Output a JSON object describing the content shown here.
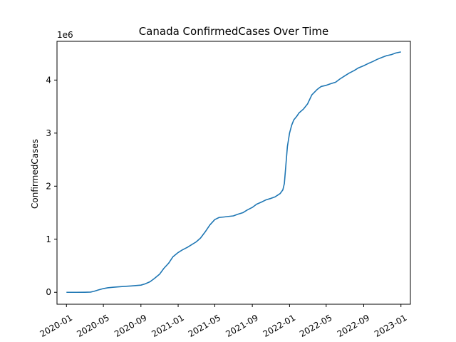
{
  "chart_data": {
    "type": "line",
    "title": "Canada  ConfirmedCases Over Time",
    "xlabel": "",
    "ylabel": "ConfirmedCases",
    "y_offset_label": "1e6",
    "y_multiplier": 1000000,
    "grid": false,
    "line_color": "#1f77b4",
    "x_ticks": [
      "2020-01",
      "2020-05",
      "2020-09",
      "2021-01",
      "2021-05",
      "2021-09",
      "2022-01",
      "2022-05",
      "2022-09",
      "2023-01"
    ],
    "y_ticks": [
      0,
      1,
      2,
      3,
      4
    ],
    "ylim": [
      -0.225,
      4.73
    ],
    "xlim": [
      "2019-12-01",
      "2023-02-01"
    ],
    "series": [
      {
        "name": "",
        "x": [
          "2020-01-01",
          "2020-02-01",
          "2020-03-01",
          "2020-03-20",
          "2020-04-01",
          "2020-04-15",
          "2020-05-01",
          "2020-05-15",
          "2020-06-01",
          "2020-07-01",
          "2020-08-01",
          "2020-09-01",
          "2020-09-15",
          "2020-10-01",
          "2020-10-15",
          "2020-11-01",
          "2020-11-15",
          "2020-12-01",
          "2020-12-15",
          "2021-01-01",
          "2021-01-15",
          "2021-02-01",
          "2021-02-15",
          "2021-03-01",
          "2021-03-15",
          "2021-04-01",
          "2021-04-15",
          "2021-05-01",
          "2021-05-15",
          "2021-06-01",
          "2021-06-15",
          "2021-07-01",
          "2021-07-15",
          "2021-08-01",
          "2021-08-15",
          "2021-09-01",
          "2021-09-15",
          "2021-10-01",
          "2021-10-15",
          "2021-11-01",
          "2021-11-15",
          "2021-12-01",
          "2021-12-10",
          "2021-12-15",
          "2021-12-20",
          "2021-12-25",
          "2022-01-01",
          "2022-01-08",
          "2022-01-15",
          "2022-01-25",
          "2022-02-01",
          "2022-02-15",
          "2022-03-01",
          "2022-03-15",
          "2022-04-01",
          "2022-04-10",
          "2022-04-15",
          "2022-05-01",
          "2022-05-15",
          "2022-06-01",
          "2022-06-15",
          "2022-07-01",
          "2022-07-15",
          "2022-08-01",
          "2022-08-15",
          "2022-09-01",
          "2022-09-15",
          "2022-10-01",
          "2022-10-15",
          "2022-11-01",
          "2022-11-15",
          "2022-12-01",
          "2022-12-15",
          "2023-01-01"
        ],
        "values": [
          0,
          0,
          0.001,
          0.004,
          0.02,
          0.045,
          0.07,
          0.085,
          0.095,
          0.108,
          0.12,
          0.135,
          0.16,
          0.2,
          0.26,
          0.34,
          0.45,
          0.55,
          0.67,
          0.75,
          0.8,
          0.85,
          0.9,
          0.95,
          1.02,
          1.15,
          1.27,
          1.37,
          1.41,
          1.42,
          1.43,
          1.44,
          1.47,
          1.5,
          1.55,
          1.6,
          1.66,
          1.7,
          1.74,
          1.77,
          1.8,
          1.86,
          1.93,
          2.05,
          2.4,
          2.75,
          3.0,
          3.15,
          3.25,
          3.32,
          3.38,
          3.45,
          3.55,
          3.72,
          3.82,
          3.86,
          3.88,
          3.9,
          3.93,
          3.96,
          4.02,
          4.08,
          4.13,
          4.18,
          4.23,
          4.27,
          4.31,
          4.35,
          4.39,
          4.43,
          4.46,
          4.48,
          4.51,
          4.53
        ]
      }
    ]
  }
}
